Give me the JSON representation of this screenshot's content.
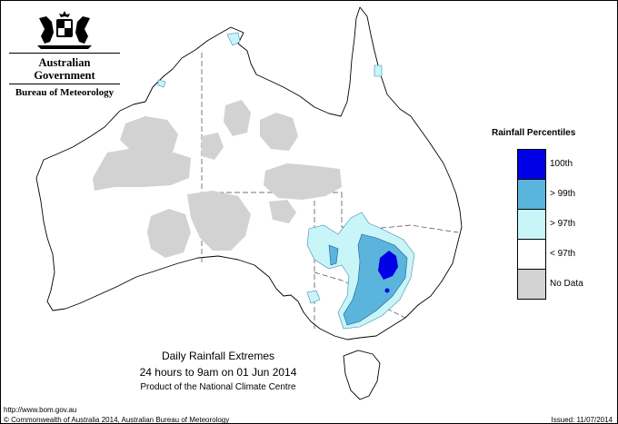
{
  "header": {
    "gov_name": "Australian Government",
    "agency": "Bureau of Meteorology",
    "crest_icon": "coat-of-arms-icon"
  },
  "legend": {
    "title": "Rainfall Percentiles",
    "items": [
      {
        "label": "100th",
        "color": "#0000e6"
      },
      {
        "label": "> 99th",
        "color": "#5ab4dc"
      },
      {
        "label": "> 97th",
        "color": "#c8f5f8"
      },
      {
        "label": "< 97th",
        "color": "#ffffff"
      },
      {
        "label": "No Data",
        "color": "#d2d2d2"
      }
    ]
  },
  "caption": {
    "title": "Daily Rainfall Extremes",
    "period": "24 hours to 9am on 01 Jun 2014",
    "product": "Product of the National Climate Centre"
  },
  "footer": {
    "url": "http://www.bom.gov.au",
    "copyright": "© Commonwealth of Australia 2014, Australian Bureau of Meteorology",
    "issued": "Issued: 11/07/2014"
  }
}
